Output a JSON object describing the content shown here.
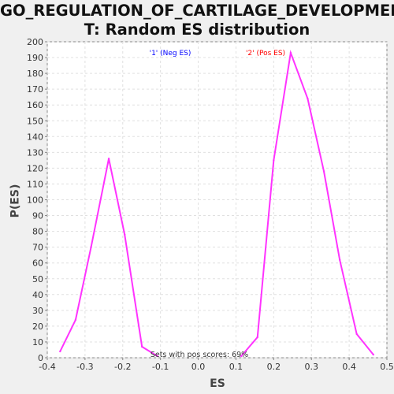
{
  "chart_data": {
    "type": "line",
    "title": "GO_REGULATION_OF_CARTILAGE_DEVELOPMEN\nT: Random ES distribution",
    "xlabel": "ES",
    "ylabel": "P(ES)",
    "xlim": [
      -0.4,
      0.5
    ],
    "ylim": [
      0,
      200
    ],
    "x_ticks": [
      "-0.4",
      "-0.3",
      "-0.2",
      "-0.1",
      "0.0",
      "0.1",
      "0.2",
      "0.3",
      "0.4",
      "0.5"
    ],
    "y_ticks": [
      "0",
      "10",
      "20",
      "30",
      "40",
      "50",
      "60",
      "70",
      "80",
      "90",
      "100",
      "110",
      "120",
      "130",
      "140",
      "150",
      "160",
      "170",
      "180",
      "190",
      "200"
    ],
    "grid": true,
    "legend": [
      {
        "label": "'1' (Neg ES)",
        "color": "#0000ff"
      },
      {
        "label": "'2' (Pos ES)",
        "color": "#ff0000"
      }
    ],
    "annotation": "Sets with pos scores: 69%",
    "series": [
      {
        "color": "#ff33ff",
        "x": [
          -0.366,
          -0.325,
          -0.284,
          -0.237,
          -0.195,
          -0.149,
          -0.108
        ],
        "y": [
          4,
          24,
          70,
          126,
          78,
          7,
          1
        ]
      },
      {
        "color": "#ff33ff",
        "x": [
          0.114,
          0.157,
          0.2,
          0.245,
          0.29,
          0.333,
          0.375,
          0.42,
          0.464
        ],
        "y": [
          1,
          13,
          125,
          193,
          164,
          118,
          62,
          15,
          2
        ]
      }
    ]
  }
}
